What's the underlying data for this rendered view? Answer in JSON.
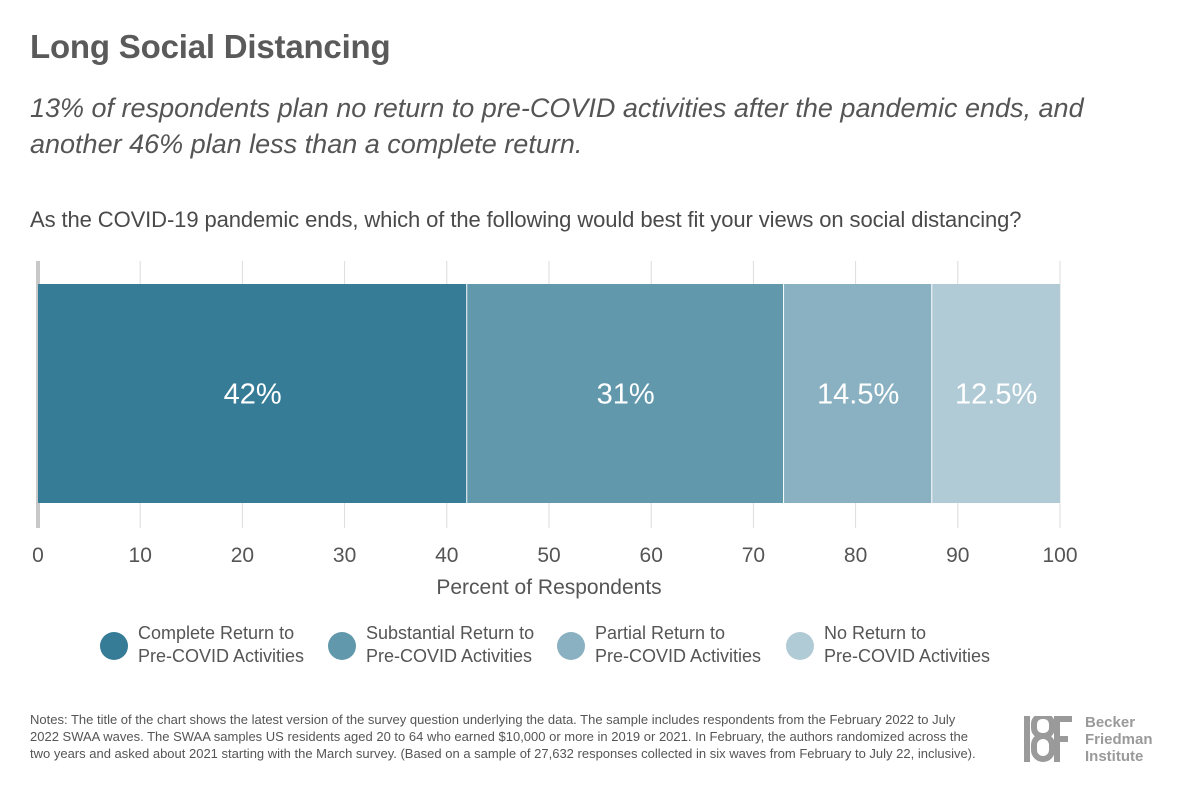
{
  "title": "Long Social Distancing",
  "subtitle": "13% of respondents plan no return to pre-COVID activities after the pandemic ends, and another 46% plan less than a complete return.",
  "question": "As the COVID-19 pandemic ends, which of the following would best fit your views on social distancing?",
  "chart_data": {
    "type": "bar",
    "orientation": "horizontal",
    "stacked": true,
    "title": "As the COVID-19 pandemic ends, which of the following would best fit your views on social distancing?",
    "xlabel": "Percent of Respondents",
    "ylabel": "",
    "xlim": [
      0,
      100
    ],
    "xticks": [
      0,
      10,
      20,
      30,
      40,
      50,
      60,
      70,
      80,
      90,
      100
    ],
    "grid": true,
    "legend_position": "bottom",
    "series": [
      {
        "name": "Complete Return to Pre-COVID Activities",
        "value": 42,
        "label": "42%",
        "color": "#377c96"
      },
      {
        "name": "Substantial Return to Pre-COVID Activities",
        "value": 31,
        "label": "31%",
        "color": "#6198ac"
      },
      {
        "name": "Partial Return to Pre-COVID Activities",
        "value": 14.5,
        "label": "14.5%",
        "color": "#89b1c1"
      },
      {
        "name": "No Return to Pre-COVID Activities",
        "value": 12.5,
        "label": "12.5%",
        "color": "#b1cbd6"
      }
    ]
  },
  "legend": [
    {
      "line1": "Complete Return to",
      "line2": "Pre-COVID Activities",
      "color": "#377c96"
    },
    {
      "line1": "Substantial Return to",
      "line2": "Pre-COVID Activities",
      "color": "#6198ac"
    },
    {
      "line1": "Partial Return to",
      "line2": "Pre-COVID Activities",
      "color": "#89b1c1"
    },
    {
      "line1": "No Return to",
      "line2": "Pre-COVID Activities",
      "color": "#b1cbd6"
    }
  ],
  "notes": "Notes: The title of the chart shows the latest version of the survey question underlying the data. The sample includes respondents from the February 2022 to July 2022 SWAA waves. The SWAA samples US residents aged 20 to 64 who earned $10,000 or more in 2019 or 2021. In February, the authors randomized across the two years and asked about 2021 starting with the March survey. (Based on a sample of 27,632 responses collected in six waves from February to July 22, inclusive).",
  "logo": {
    "mark": "BF",
    "line1": "Becker",
    "line2": "Friedman",
    "line3": "Institute"
  }
}
